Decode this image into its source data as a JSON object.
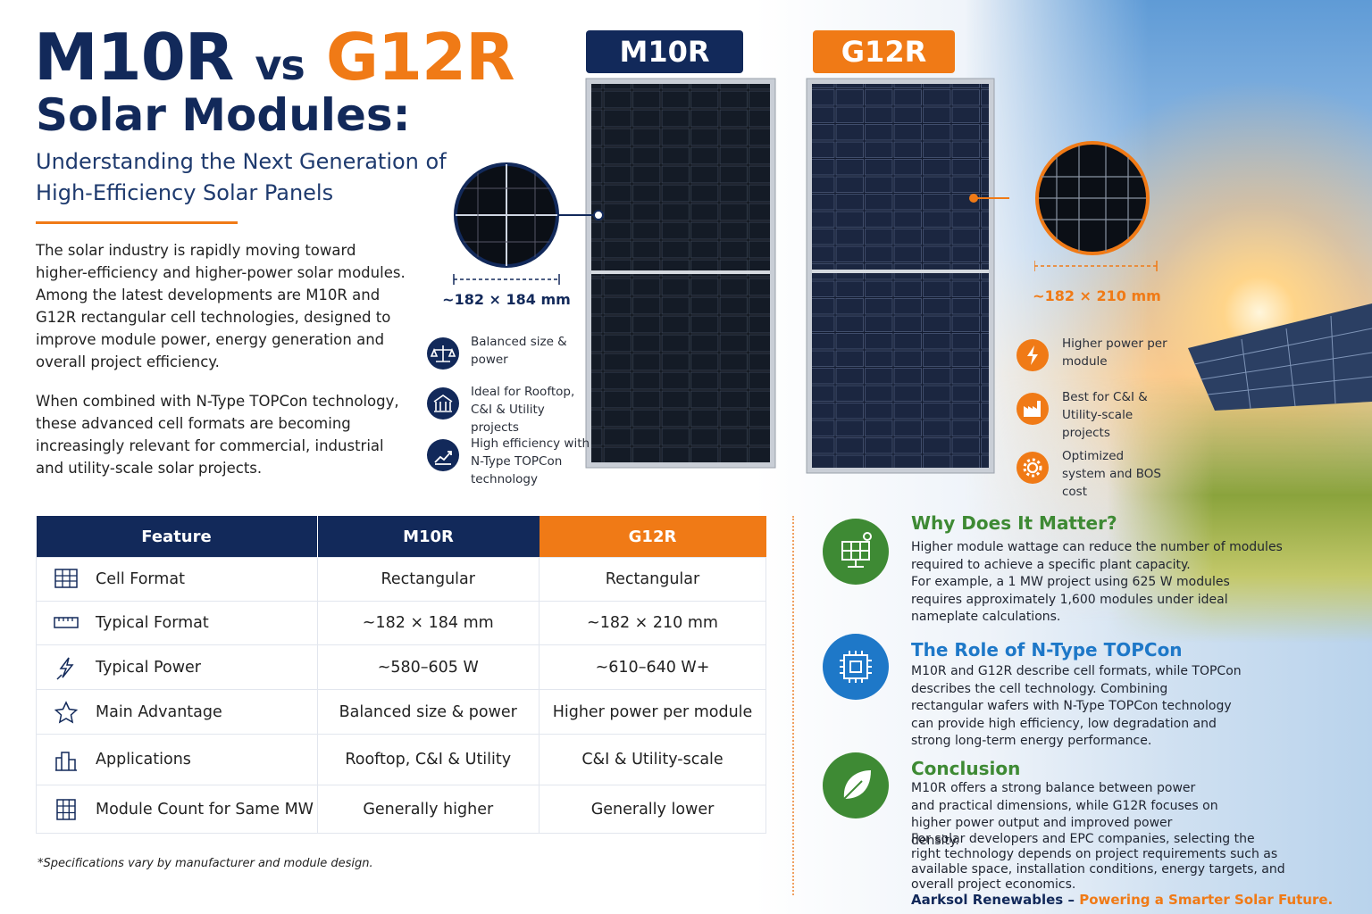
{
  "title": {
    "model_a": "M10R",
    "vs": "vs",
    "model_b": "G12R",
    "line2": "Solar Modules:"
  },
  "subtitle": "Understanding the Next Generation of High-Efficiency Solar Panels",
  "intro": [
    "The solar industry is rapidly moving toward higher-efficiency and higher-power solar modules. Among the latest developments are M10R and G12R rectangular cell technologies, designed to improve module power, energy generation and overall project efficiency.",
    "When combined with N-Type TOPCon technology, these advanced cell formats are becoming increasingly relevant for commercial, industrial and utility-scale solar projects."
  ],
  "panels": [
    {
      "label": "M10R",
      "size": "~182 × 184 mm",
      "features": [
        "Balanced size & power",
        "Ideal for Rooftop, C&I & Utility projects",
        "High efficiency with N-Type TOPCon technology"
      ]
    },
    {
      "label": "G12R",
      "size": "~182 × 210 mm",
      "features": [
        "Higher power per module",
        "Best for C&I & Utility-scale projects",
        "Optimized system and BOS cost"
      ]
    }
  ],
  "table": {
    "headers": [
      "Feature",
      "M10R",
      "G12R"
    ],
    "rows": [
      [
        "Cell Format",
        "Rectangular",
        "Rectangular"
      ],
      [
        "Typical Format",
        "~182 × 184 mm",
        "~182 × 210 mm"
      ],
      [
        "Typical Power",
        "~580–605 W",
        "~610–640 W+"
      ],
      [
        "Main Advantage",
        "Balanced size & power",
        "Higher power per module"
      ],
      [
        "Applications",
        "Rooftop, C&I & Utility",
        "C&I & Utility-scale"
      ],
      [
        "Module Count for Same MW",
        "Generally higher",
        "Generally lower"
      ]
    ]
  },
  "footnote": "*Specifications vary by manufacturer and module design.",
  "sections": [
    {
      "title": "Why Does It Matter?",
      "paragraphs": [
        "Higher module wattage can reduce the number of modules required to achieve a specific plant capacity.",
        "For example, a 1 MW project using 625 W modules requires approximately 1,600 modules under ideal nameplate calculations."
      ]
    },
    {
      "title": "The Role of N-Type TOPCon",
      "paragraphs": [
        "M10R and G12R describe cell formats, while TOPCon describes the cell technology. Combining rectangular wafers with N-Type TOPCon technology can provide high efficiency, low degradation and strong long-term energy performance."
      ]
    },
    {
      "title": "Conclusion",
      "paragraphs": [
        "M10R offers a strong balance between power and practical dimensions, while G12R focuses on higher power output and improved power density.",
        "For solar developers and EPC companies, selecting the right technology depends on project requirements such as available space, installation conditions, energy targets, and overall project economics."
      ]
    }
  ],
  "footer": {
    "brand": "Aarksol Renewables –",
    "tagline": "Powering a Smarter Solar Future."
  }
}
